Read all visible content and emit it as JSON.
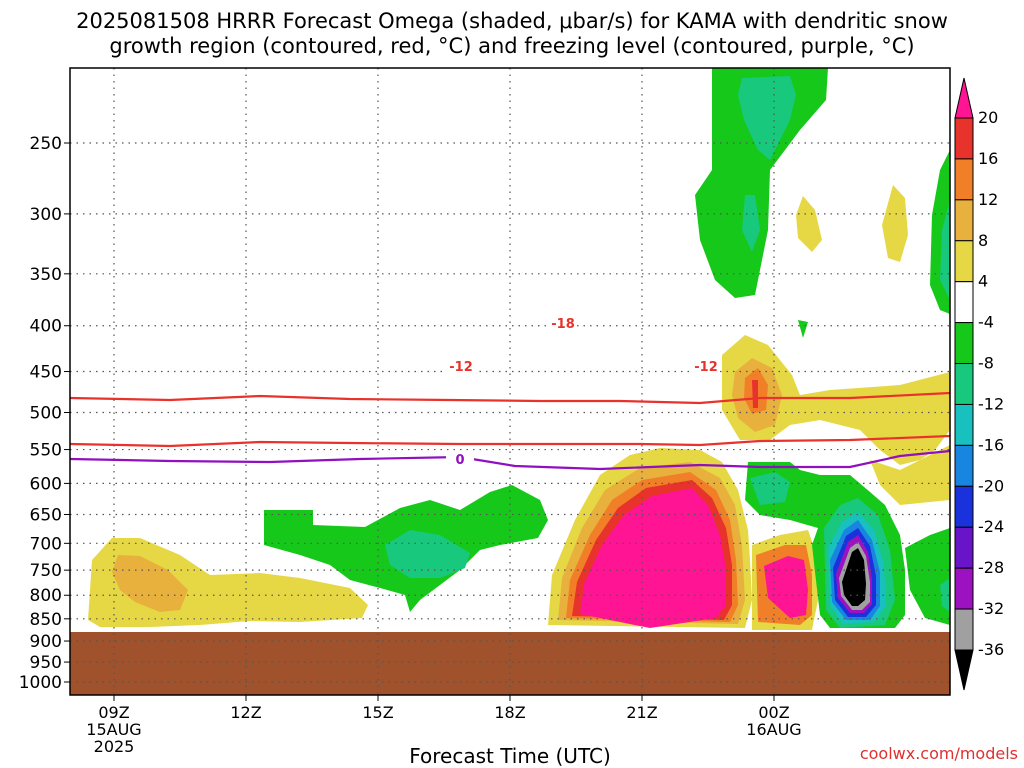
{
  "title_line1": "2025081508 HRRR Forecast Omega (shaded, μbar/s) for KAMA with dendritic snow",
  "title_line2": "growth region (contoured, red, °C) and freezing level (contoured, purple, °C)",
  "credit": "coolwx.com/models",
  "chart_data": {
    "type": "heatmap",
    "title": "2025081508 HRRR Forecast Omega (shaded, μbar/s) for KAMA with dendritic snow growth region (contoured, red, °C) and freezing level (contoured, purple, °C)",
    "xlabel": "Forecast Time (UTC)",
    "ylabel": "",
    "x_range_hours_utc": [
      "2025-08-15 08Z",
      "2025-08-16 04Z"
    ],
    "x_ticks": [
      {
        "time": "2025-08-15 09Z",
        "label": "09Z",
        "sub1": "15AUG",
        "sub2": "2025"
      },
      {
        "time": "2025-08-15 12Z",
        "label": "12Z",
        "sub1": "",
        "sub2": ""
      },
      {
        "time": "2025-08-15 15Z",
        "label": "15Z",
        "sub1": "",
        "sub2": ""
      },
      {
        "time": "2025-08-15 18Z",
        "label": "18Z",
        "sub1": "",
        "sub2": ""
      },
      {
        "time": "2025-08-15 21Z",
        "label": "21Z",
        "sub1": "",
        "sub2": ""
      },
      {
        "time": "2025-08-16 00Z",
        "label": "00Z",
        "sub1": "16AUG",
        "sub2": ""
      }
    ],
    "y_axis": "pressure (hPa), inverted",
    "y_ticks": [
      250,
      300,
      350,
      400,
      450,
      500,
      550,
      600,
      650,
      700,
      750,
      800,
      850,
      900,
      950,
      1000
    ],
    "colorbar": {
      "labels": [
        "20",
        "16",
        "12",
        "8",
        "4",
        "-4",
        "-8",
        "-12",
        "-16",
        "-20",
        "-24",
        "-28",
        "-32",
        "-36"
      ],
      "colors": [
        "#ff1493",
        "#e8322c",
        "#f07f28",
        "#e8b03c",
        "#e6d844",
        "#ffffff",
        "#16c81a",
        "#18c87c",
        "#19c0c0",
        "#1886e0",
        "#1a32dc",
        "#6a14c8",
        "#9d12c0",
        "#a0a0a0",
        "#000000"
      ]
    },
    "contours": [
      {
        "label": "-18",
        "color": "#e8322c",
        "pressure": 400
      },
      {
        "label": "-12",
        "color": "#e8322c",
        "pressure": 443
      },
      {
        "label": "-12",
        "color": "#e8322c",
        "pressure": 443
      },
      {
        "label": "0",
        "color": "#9010c0",
        "pressure": 570
      }
    ],
    "ground_below_hpa": 890,
    "ground_color": "#a0522d",
    "shaded_features": [
      {
        "desc": "upward motion core",
        "omega": "<= -36",
        "time": "2025-08-16 00Z",
        "pressure": 770
      },
      {
        "desc": "strong downward motion",
        "omega": ">= 20",
        "time": "2025-08-15 20Z",
        "pressure": 770
      }
    ]
  }
}
